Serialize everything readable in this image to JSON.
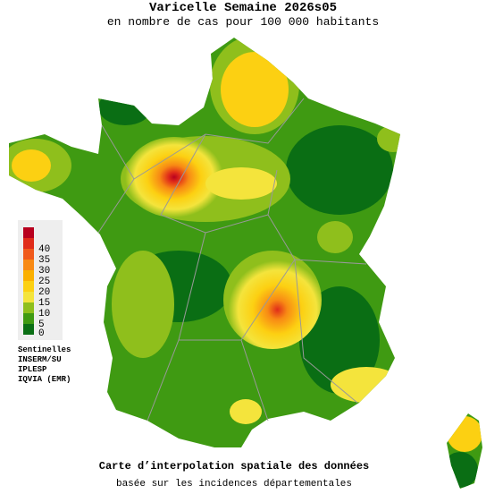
{
  "header": {
    "title": "Varicelle Semaine 2026s05",
    "subtitle": "en nombre de cas pour 100 000 habitants"
  },
  "legend": {
    "labels": [
      0,
      5,
      10,
      15,
      20,
      25,
      30,
      35,
      40
    ],
    "colors": [
      "#0a6e14",
      "#3f9a12",
      "#8fbf1c",
      "#f4e43c",
      "#fcd012",
      "#fbb000",
      "#f88a14",
      "#f05a1c",
      "#e02c1a",
      "#b8001e"
    ]
  },
  "sources": [
    "Sentinelles",
    "INSERM/SU",
    "IPLESP",
    "IQVIA (EMR)"
  ],
  "footer": {
    "line1": "Carte d’interpolation spatiale des données",
    "line2": "basée sur les incidences départementales"
  }
}
